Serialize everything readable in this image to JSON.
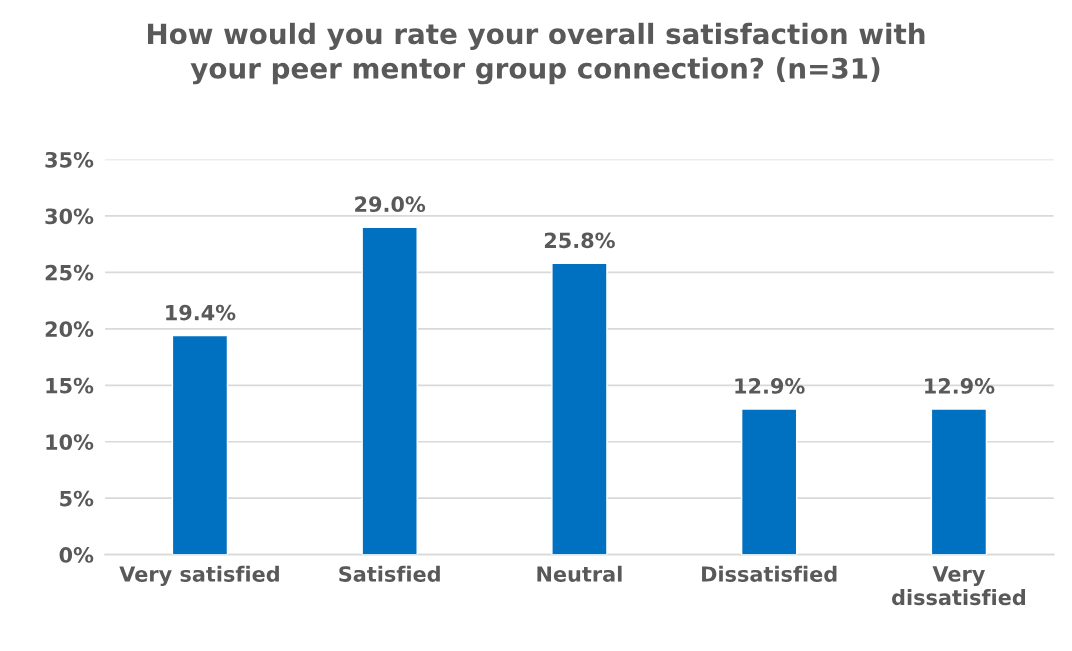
{
  "chart_data": {
    "type": "bar",
    "title": "How would you rate your overall satisfaction with\nyour peer mentor group connection? (n=31)",
    "categories": [
      "Very satisfied",
      "Satisfied",
      "Neutral",
      "Dissatisfied",
      "Very\ndissatisfied"
    ],
    "values": [
      19.4,
      29.0,
      25.8,
      12.9,
      12.9
    ],
    "value_labels": [
      "19.4%",
      "29.0%",
      "25.8%",
      "12.9%",
      "12.9%"
    ],
    "color": "#0070c0",
    "ylim": [
      0,
      35
    ],
    "yticks": [
      {
        "value": 0,
        "label": "0%"
      },
      {
        "value": 5,
        "label": "5%"
      },
      {
        "value": 10,
        "label": "10%"
      },
      {
        "value": 15,
        "label": "15%"
      },
      {
        "value": 20,
        "label": "20%"
      },
      {
        "value": 25,
        "label": "25%"
      },
      {
        "value": 30,
        "label": "30%"
      },
      {
        "value": 35,
        "label": "35%"
      }
    ],
    "grid": "y",
    "legend": false
  }
}
